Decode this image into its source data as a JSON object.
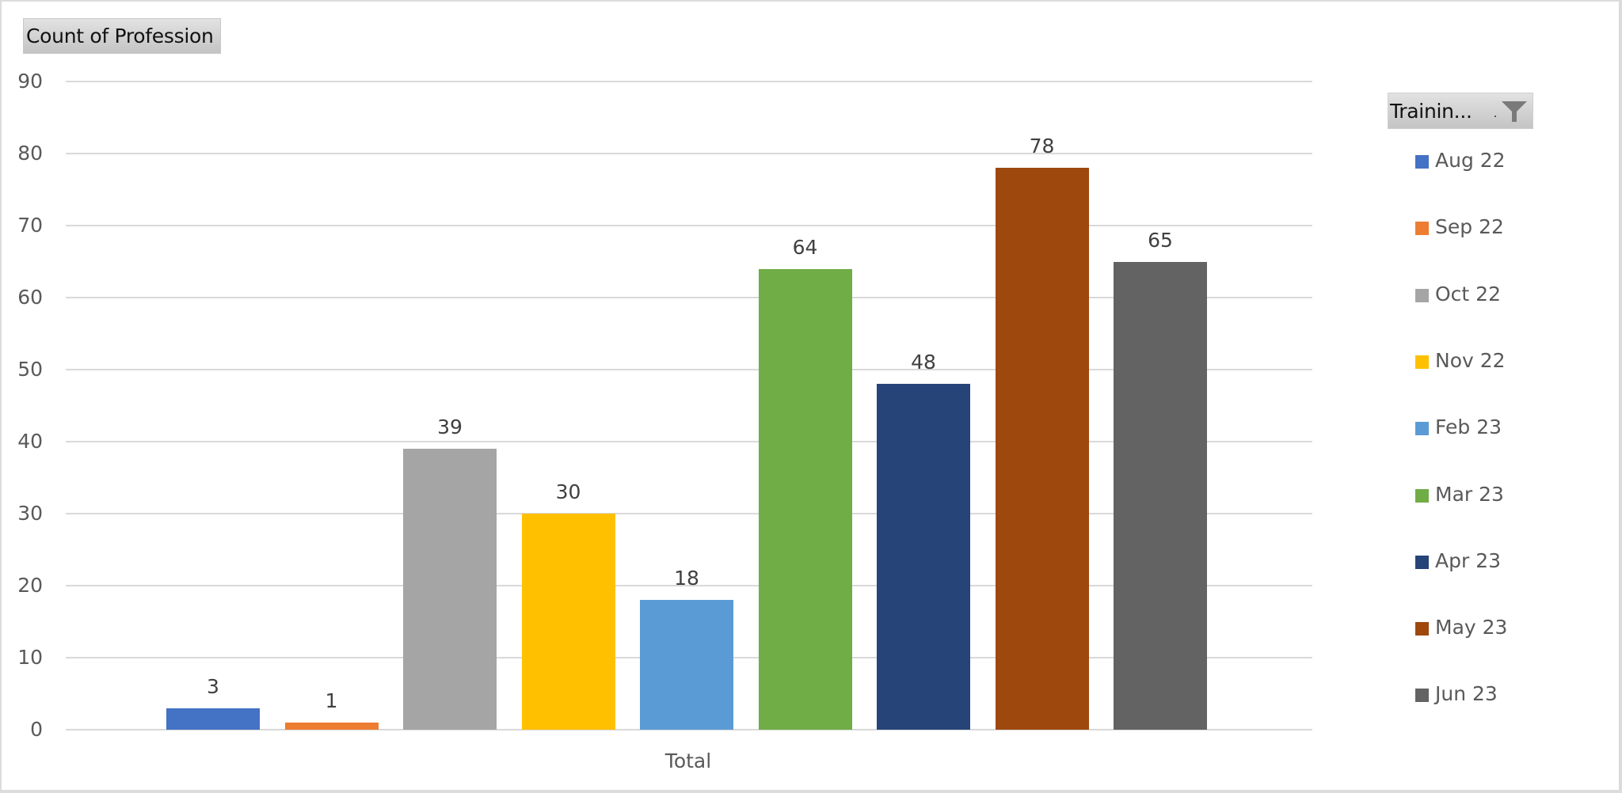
{
  "field_button": {
    "label": "Count of Profession"
  },
  "legend": {
    "filter_label": "Trainin...",
    "filter_icon": "filter-funnel-icon",
    "items": [
      {
        "label": "Aug 22",
        "color": "#4472C4"
      },
      {
        "label": "Sep 22",
        "color": "#ED7D31"
      },
      {
        "label": "Oct 22",
        "color": "#A5A5A5"
      },
      {
        "label": "Nov 22",
        "color": "#FFC000"
      },
      {
        "label": "Feb 23",
        "color": "#5B9BD5"
      },
      {
        "label": "Mar 23",
        "color": "#70AD47"
      },
      {
        "label": "Apr 23",
        "color": "#264478"
      },
      {
        "label": "May 23",
        "color": "#9E480E"
      },
      {
        "label": "Jun 23",
        "color": "#636363"
      }
    ]
  },
  "axis": {
    "y_ticks": [
      "90",
      "80",
      "70",
      "60",
      "50",
      "40",
      "30",
      "20",
      "10",
      "0"
    ],
    "x_category": "Total"
  },
  "bars": [
    {
      "label": "3",
      "value": 3
    },
    {
      "label": "1",
      "value": 1
    },
    {
      "label": "39",
      "value": 39
    },
    {
      "label": "30",
      "value": 30
    },
    {
      "label": "18",
      "value": 18
    },
    {
      "label": "64",
      "value": 64
    },
    {
      "label": "48",
      "value": 48
    },
    {
      "label": "78",
      "value": 78
    },
    {
      "label": "65",
      "value": 65
    }
  ],
  "chart_data": {
    "type": "bar",
    "title": "",
    "pivot_field": "Count of Profession",
    "categories": [
      "Total"
    ],
    "series": [
      {
        "name": "Aug 22",
        "values": [
          3
        ],
        "color": "#4472C4"
      },
      {
        "name": "Sep 22",
        "values": [
          1
        ],
        "color": "#ED7D31"
      },
      {
        "name": "Oct 22",
        "values": [
          39
        ],
        "color": "#A5A5A5"
      },
      {
        "name": "Nov 22",
        "values": [
          30
        ],
        "color": "#FFC000"
      },
      {
        "name": "Feb 23",
        "values": [
          18
        ],
        "color": "#5B9BD5"
      },
      {
        "name": "Mar 23",
        "values": [
          64
        ],
        "color": "#70AD47"
      },
      {
        "name": "Apr 23",
        "values": [
          48
        ],
        "color": "#264478"
      },
      {
        "name": "May 23",
        "values": [
          78
        ],
        "color": "#9E480E"
      },
      {
        "name": "Jun 23",
        "values": [
          65
        ],
        "color": "#636363"
      }
    ],
    "xlabel": "",
    "ylabel": "",
    "ylim": [
      0,
      90
    ],
    "y_ticks": [
      0,
      10,
      20,
      30,
      40,
      50,
      60,
      70,
      80,
      90
    ],
    "grid": true,
    "data_labels": true,
    "legend_title": "Trainin...",
    "legend_position": "right"
  }
}
